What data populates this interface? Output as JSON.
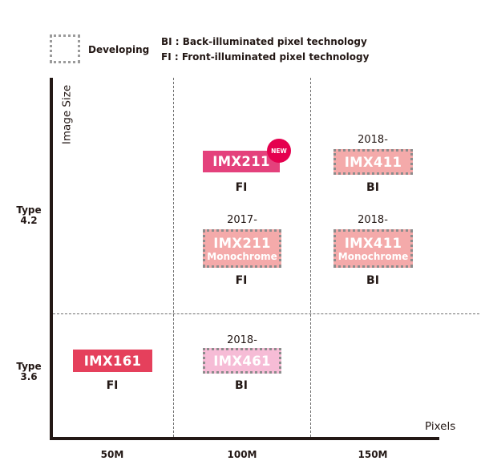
{
  "legend": {
    "developing_label": "Developing",
    "bi_label": "BI : Back-illuminated pixel technology",
    "fi_label": "FI : Front-illuminated pixel technology"
  },
  "axes": {
    "y_title": "Image Size",
    "x_title": "Pixels",
    "y_rows": [
      {
        "line1": "Type",
        "line2": "4.2"
      },
      {
        "line1": "Type",
        "line2": "3.6"
      }
    ],
    "x_columns": [
      "50M",
      "100M",
      "150M"
    ]
  },
  "sensors": [
    {
      "name": "IMX211",
      "sub": "",
      "year": "",
      "tech": "FI",
      "status": "released",
      "badge": "NEW",
      "column": "100M",
      "row": "Type 4.2"
    },
    {
      "name": "IMX411",
      "sub": "",
      "year": "2018-",
      "tech": "BI",
      "status": "developing",
      "badge": "",
      "column": "150M",
      "row": "Type 4.2"
    },
    {
      "name": "IMX211",
      "sub": "Monochrome",
      "year": "2017-",
      "tech": "FI",
      "status": "developing",
      "badge": "",
      "column": "100M",
      "row": "Type 4.2"
    },
    {
      "name": "IMX411",
      "sub": "Monochrome",
      "year": "2018-",
      "tech": "BI",
      "status": "developing",
      "badge": "",
      "column": "150M",
      "row": "Type 4.2"
    },
    {
      "name": "IMX161",
      "sub": "",
      "year": "",
      "tech": "FI",
      "status": "released",
      "badge": "",
      "column": "50M",
      "row": "Type 3.6"
    },
    {
      "name": "IMX461",
      "sub": "",
      "year": "2018-",
      "tech": "BI",
      "status": "developing",
      "badge": "",
      "column": "100M",
      "row": "Type 3.6"
    }
  ],
  "colors": {
    "released_red": "#e5405c",
    "released_magenta": "#e4417c",
    "developing_salmon": "#f4aaaa",
    "developing_pink": "#f6bcd6",
    "badge": "#e5004f"
  }
}
